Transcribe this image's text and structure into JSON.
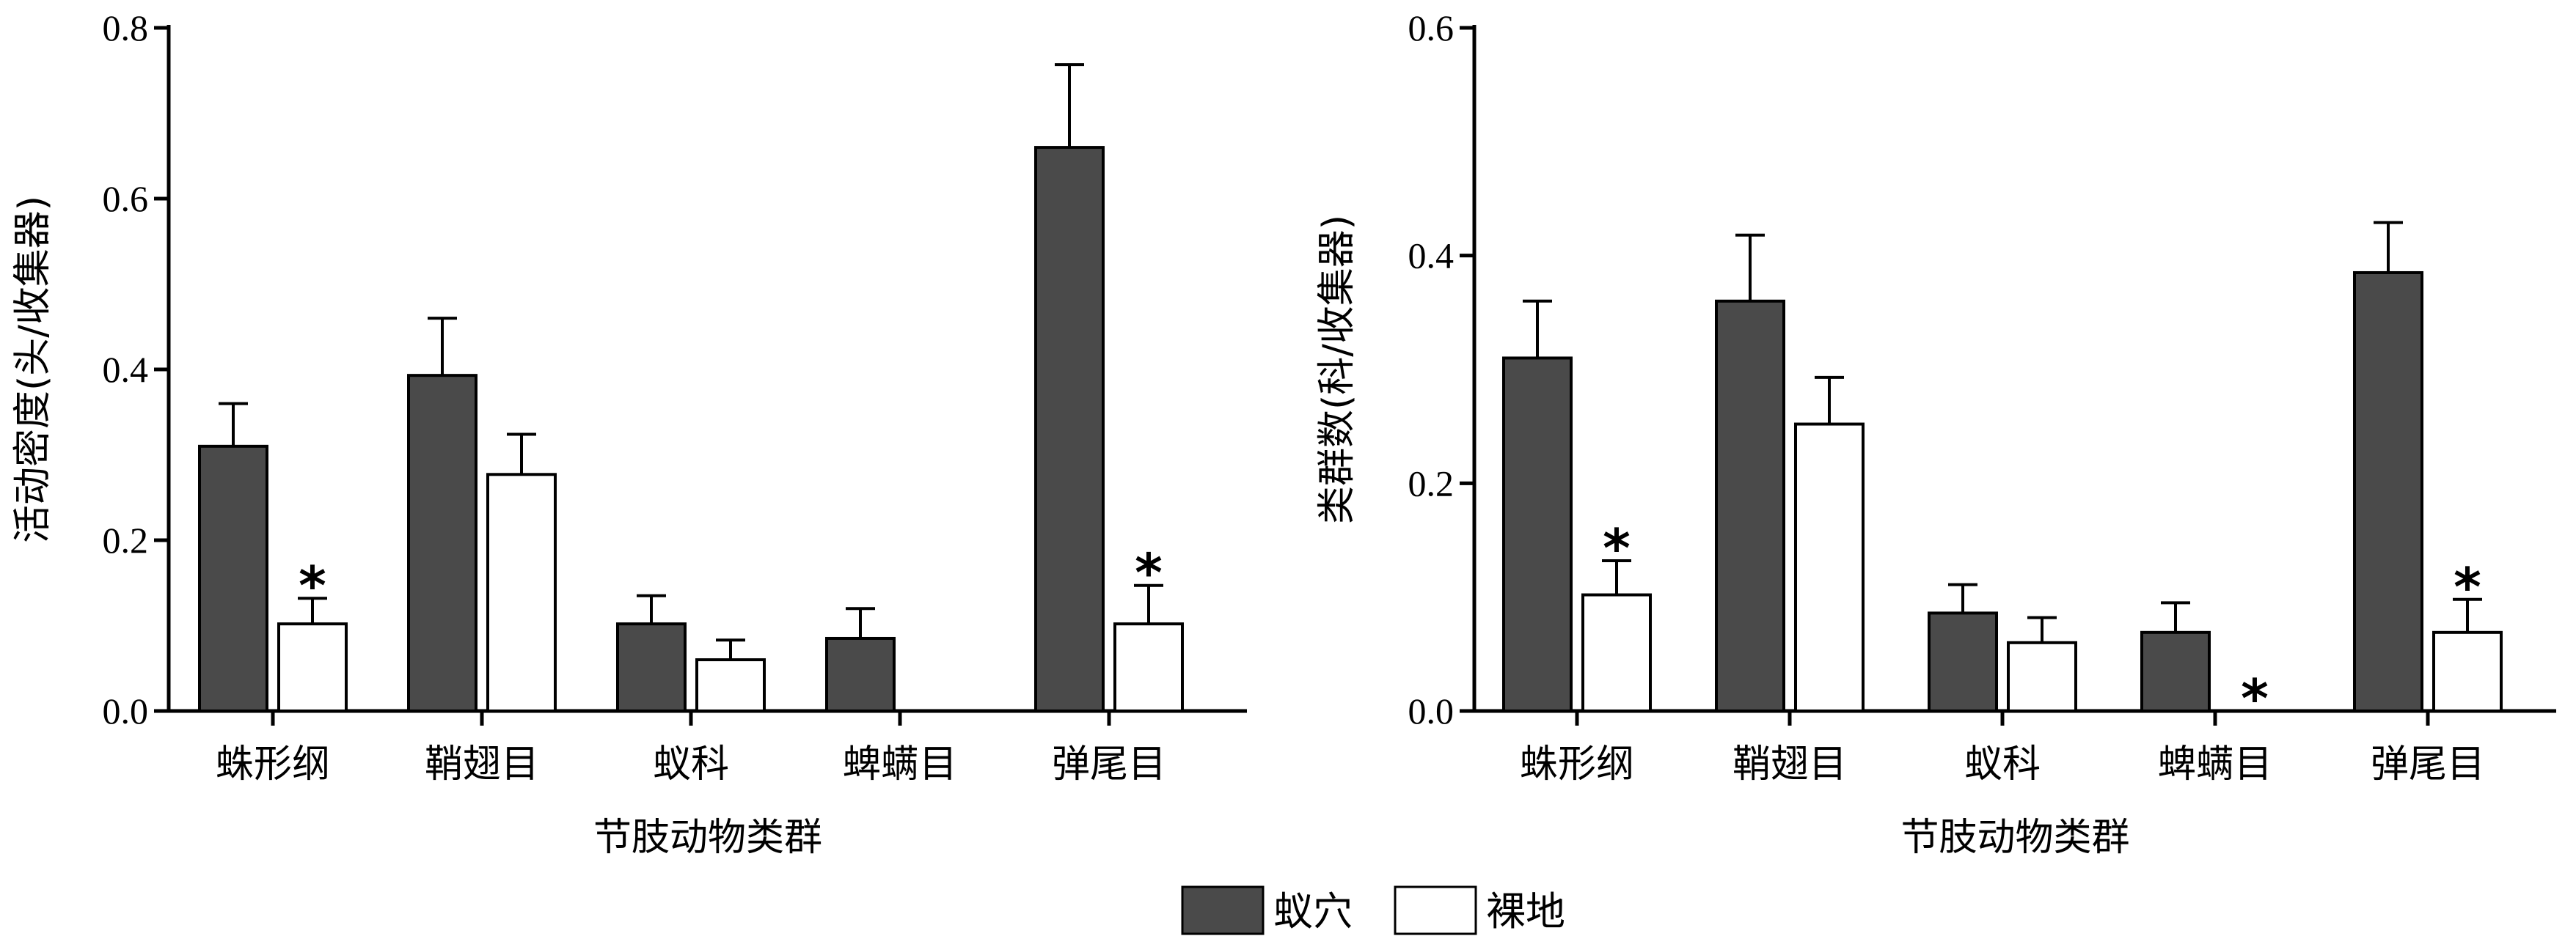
{
  "colors": {
    "burrow": "#4a4a4a",
    "bare": "#ffffff",
    "stroke": "#000000"
  },
  "legend": {
    "items": [
      {
        "label": "蚁穴",
        "color": "#4a4a4a"
      },
      {
        "label": "裸地",
        "color": "#ffffff"
      }
    ],
    "placement": "bottom-center"
  },
  "chart_data": [
    {
      "type": "bar",
      "categories": [
        "蛛形纲",
        "鞘翅目",
        "蚁科",
        "蜱螨目",
        "弹尾目"
      ],
      "series": [
        {
          "name": "蚁穴",
          "values": [
            0.31,
            0.393,
            0.102,
            0.085,
            0.66
          ],
          "errors": [
            0.05,
            0.067,
            0.033,
            0.035,
            0.097
          ]
        },
        {
          "name": "裸地",
          "values": [
            0.102,
            0.277,
            0.06,
            0.0,
            0.102
          ],
          "errors": [
            0.03,
            0.047,
            0.023,
            0.0,
            0.045
          ]
        }
      ],
      "significance": [
        "*",
        "",
        "",
        "",
        "*"
      ],
      "xlabel": "节肢动物类群",
      "ylabel": "活动密度(头/收集器)",
      "ylim": [
        0,
        0.8
      ],
      "yticks": [
        "0.0",
        "0.2",
        "0.4",
        "0.6",
        "0.8"
      ],
      "grid": false
    },
    {
      "type": "bar",
      "categories": [
        "蛛形纲",
        "鞘翅目",
        "蚁科",
        "蜱螨目",
        "弹尾目"
      ],
      "series": [
        {
          "name": "蚁穴",
          "values": [
            0.31,
            0.36,
            0.086,
            0.069,
            0.385
          ],
          "errors": [
            0.05,
            0.058,
            0.025,
            0.026,
            0.044
          ]
        },
        {
          "name": "裸地",
          "values": [
            0.102,
            0.252,
            0.06,
            0.0,
            0.069
          ],
          "errors": [
            0.03,
            0.041,
            0.022,
            0.0,
            0.029
          ]
        }
      ],
      "significance": [
        "*",
        "",
        "",
        "*",
        "*"
      ],
      "xlabel": "节肢动物类群",
      "ylabel": "类群数(科/收集器)",
      "ylim": [
        0,
        0.6
      ],
      "yticks": [
        "0.0",
        "0.2",
        "0.4",
        "0.6"
      ],
      "grid": false
    }
  ]
}
